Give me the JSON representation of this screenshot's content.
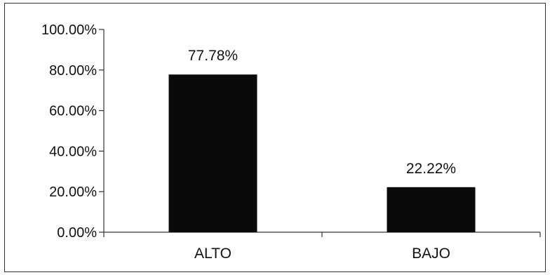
{
  "chart_data": {
    "type": "bar",
    "categories": [
      "ALTO",
      "BAJO"
    ],
    "values": [
      77.78,
      22.22
    ],
    "data_labels": [
      "77.78%",
      "22.22%"
    ],
    "ylim": [
      0,
      100
    ],
    "yticks": [
      0,
      20,
      40,
      60,
      80,
      100
    ],
    "ytick_labels": [
      "0.00%",
      "20.00%",
      "40.00%",
      "60.00%",
      "80.00%",
      "100.00%"
    ],
    "title": "",
    "xlabel": "",
    "ylabel": "",
    "grid": false,
    "legend": "none",
    "bar_color": "#0a0a0a"
  }
}
